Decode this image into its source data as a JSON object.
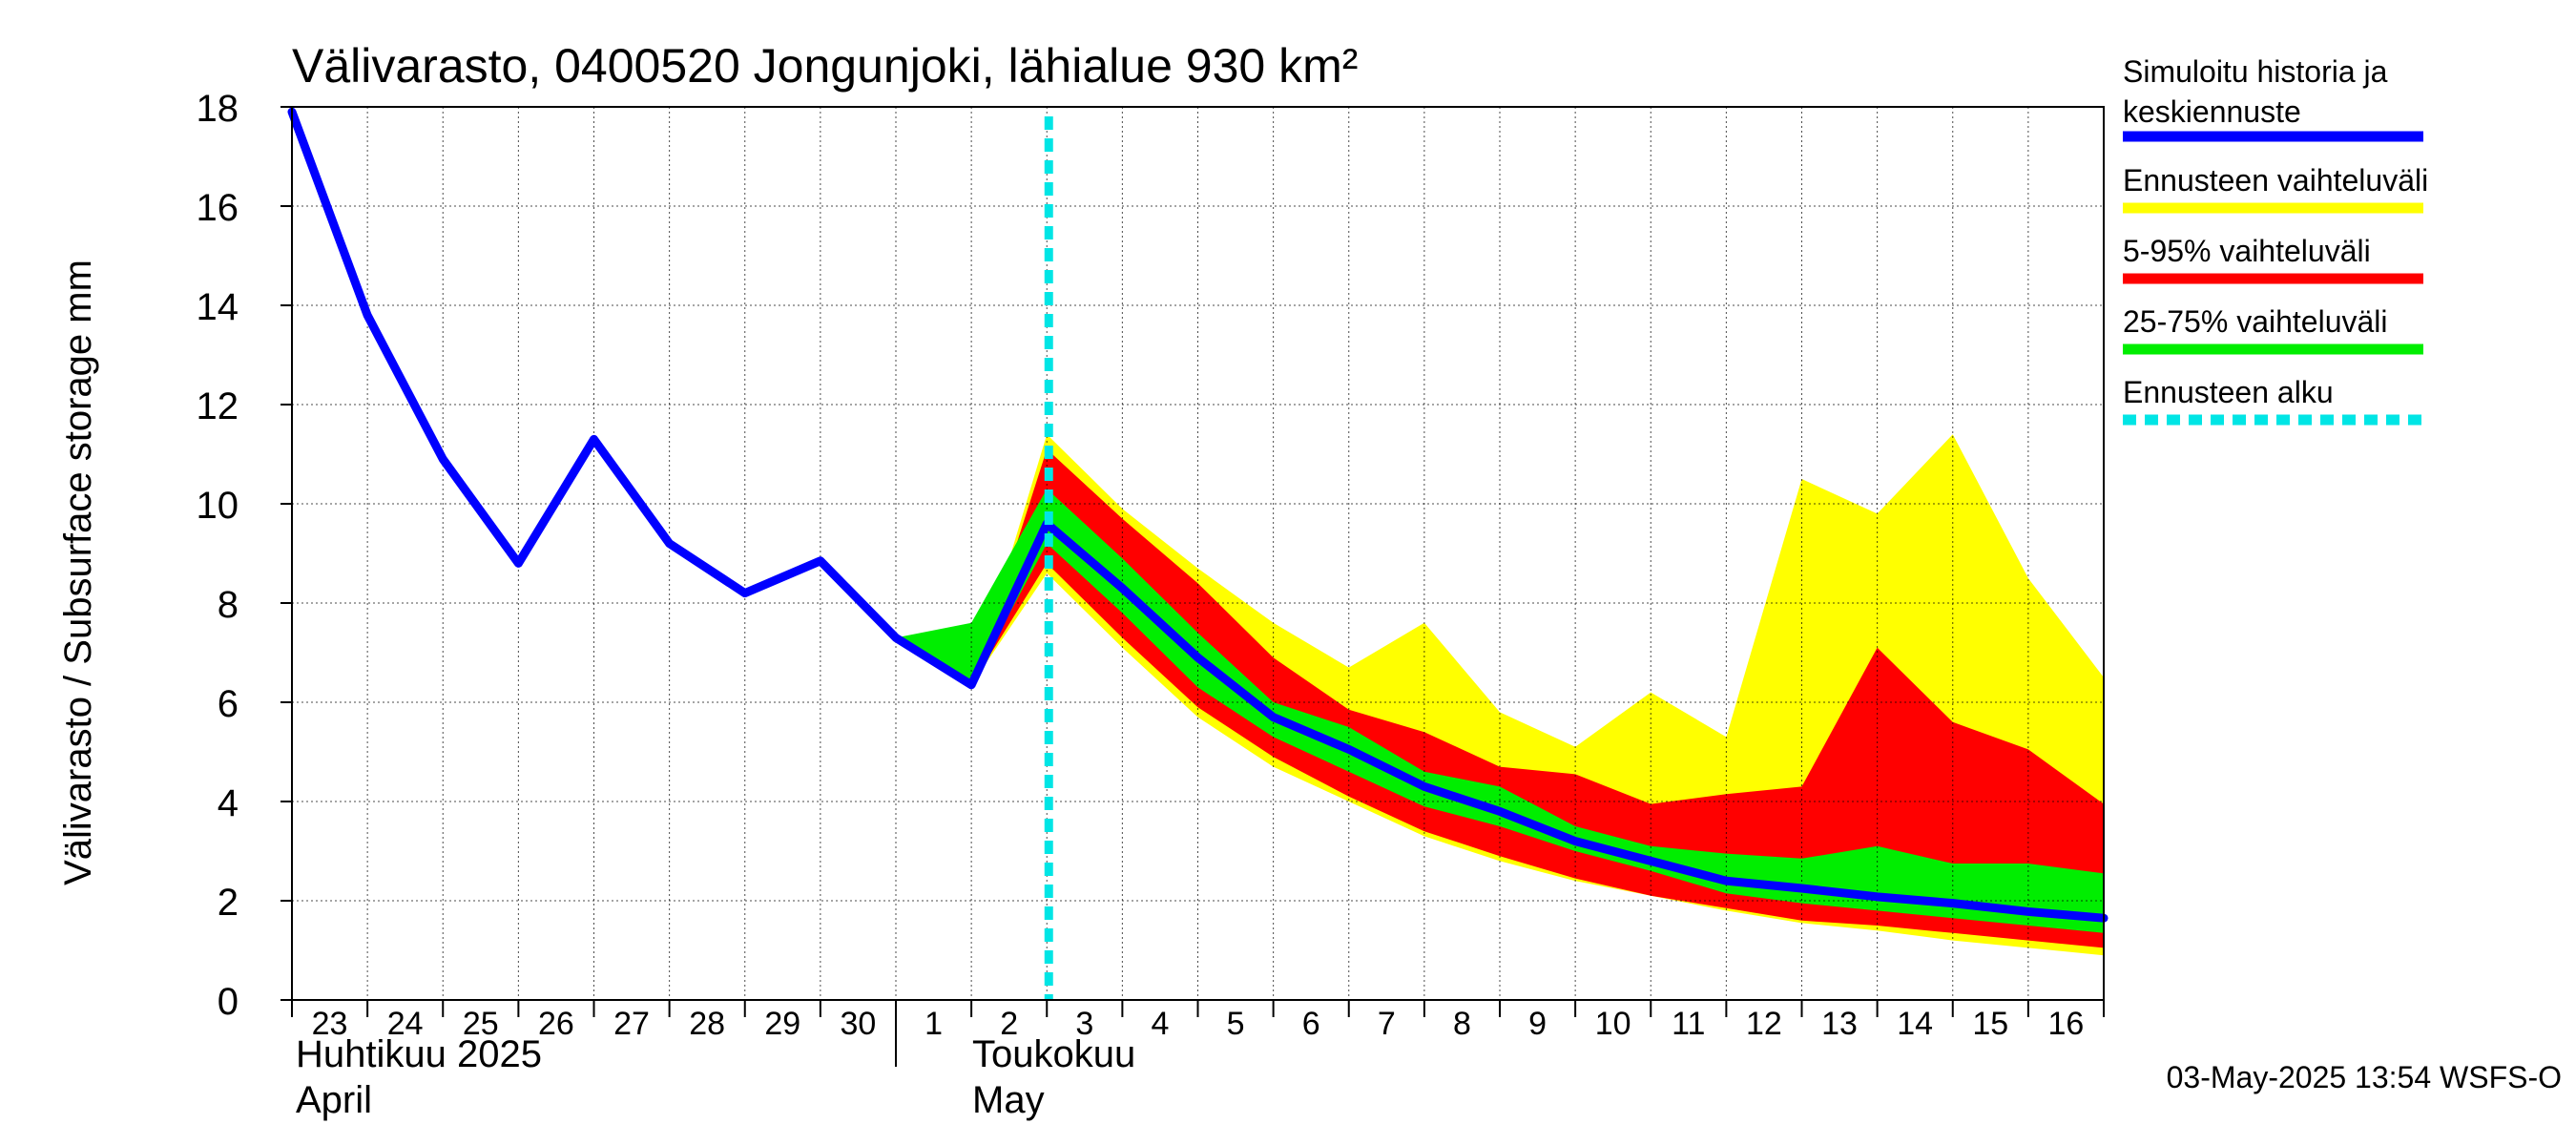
{
  "chart_data": {
    "type": "area",
    "title": "Välivarasto, 0400520 Jongunjoki, lähialue 930 km²",
    "ylabel": "Välivarasto / Subsurface storage  mm",
    "ylim": [
      0,
      18
    ],
    "yticks": [
      0,
      2,
      4,
      6,
      8,
      10,
      12,
      14,
      16,
      18
    ],
    "grid": true,
    "x_day_labels": [
      "23",
      "24",
      "25",
      "26",
      "27",
      "28",
      "29",
      "30",
      "1",
      "2",
      "3",
      "4",
      "5",
      "6",
      "7",
      "8",
      "9",
      "10",
      "11",
      "12",
      "13",
      "14",
      "15",
      "16"
    ],
    "month_labels": [
      {
        "line1": "Huhtikuu  2025",
        "line2": "April",
        "start_day_index": 0
      },
      {
        "line1": "Toukokuu",
        "line2": "May",
        "start_day_index": 8
      }
    ],
    "forecast_start_day_index": 10,
    "series": [
      {
        "name": "Simuloitu historia ja keskiennuste",
        "color": "#0000ff",
        "values": [
          17.9,
          13.8,
          10.9,
          8.8,
          11.3,
          9.2,
          8.2,
          8.85,
          7.3,
          6.35,
          9.6,
          8.3,
          6.9,
          5.7,
          5.05,
          4.3,
          3.8,
          3.2,
          2.8,
          2.4,
          2.25,
          2.08,
          1.95,
          1.78,
          1.65
        ]
      },
      {
        "name": "Ennusteen vaihteluväli",
        "color": "#ffff00",
        "upper": [
          null,
          null,
          null,
          null,
          null,
          null,
          null,
          null,
          7.3,
          6.35,
          11.4,
          9.9,
          8.7,
          7.6,
          6.7,
          7.6,
          5.8,
          5.1,
          6.2,
          5.3,
          10.5,
          9.8,
          11.4,
          8.5,
          6.5
        ],
        "lower": [
          null,
          null,
          null,
          null,
          null,
          null,
          null,
          null,
          7.3,
          6.35,
          8.6,
          7.1,
          5.7,
          4.7,
          4.0,
          3.3,
          2.8,
          2.4,
          2.1,
          1.8,
          1.55,
          1.4,
          1.2,
          1.05,
          0.9
        ]
      },
      {
        "name": "5-95% vaihteluväli",
        "color": "#ff0000",
        "upper": [
          null,
          null,
          null,
          null,
          null,
          null,
          null,
          null,
          7.3,
          6.35,
          11.1,
          9.7,
          8.4,
          6.9,
          5.85,
          5.4,
          4.7,
          4.55,
          3.95,
          4.15,
          4.3,
          7.1,
          5.6,
          5.05,
          3.95
        ],
        "lower": [
          null,
          null,
          null,
          null,
          null,
          null,
          null,
          null,
          7.3,
          6.35,
          8.8,
          7.3,
          5.9,
          4.9,
          4.1,
          3.4,
          2.9,
          2.45,
          2.1,
          1.85,
          1.6,
          1.5,
          1.35,
          1.2,
          1.05
        ]
      },
      {
        "name": "25-75% vaihteluväli",
        "color": "#00ee00",
        "upper": [
          null,
          null,
          null,
          null,
          null,
          null,
          null,
          null,
          7.3,
          7.6,
          10.3,
          8.9,
          7.4,
          6.0,
          5.5,
          4.6,
          4.3,
          3.5,
          3.1,
          2.95,
          2.85,
          3.1,
          2.75,
          2.75,
          2.55
        ],
        "lower": [
          null,
          null,
          null,
          null,
          null,
          null,
          null,
          null,
          7.3,
          6.35,
          9.2,
          7.8,
          6.3,
          5.3,
          4.6,
          3.9,
          3.5,
          3.0,
          2.6,
          2.15,
          1.95,
          1.8,
          1.65,
          1.5,
          1.35
        ]
      },
      {
        "name": "Ennusteen alku",
        "color": "#00e5e5",
        "style": "dashed"
      }
    ]
  },
  "legend": {
    "items": [
      {
        "label": "Simuloitu historia ja keskiennuste",
        "color": "#0000ff",
        "style": "solid"
      },
      {
        "label": "Ennusteen vaihteluväli",
        "color": "#ffff00",
        "style": "solid"
      },
      {
        "label": "5-95% vaihteluväli",
        "color": "#ff0000",
        "style": "solid"
      },
      {
        "label": "25-75% vaihteluväli",
        "color": "#00ee00",
        "style": "solid"
      },
      {
        "label": "Ennusteen alku",
        "color": "#00e5e5",
        "style": "dashed"
      }
    ]
  },
  "footer": {
    "timestamp": "03-May-2025 13:54 WSFS-O"
  }
}
